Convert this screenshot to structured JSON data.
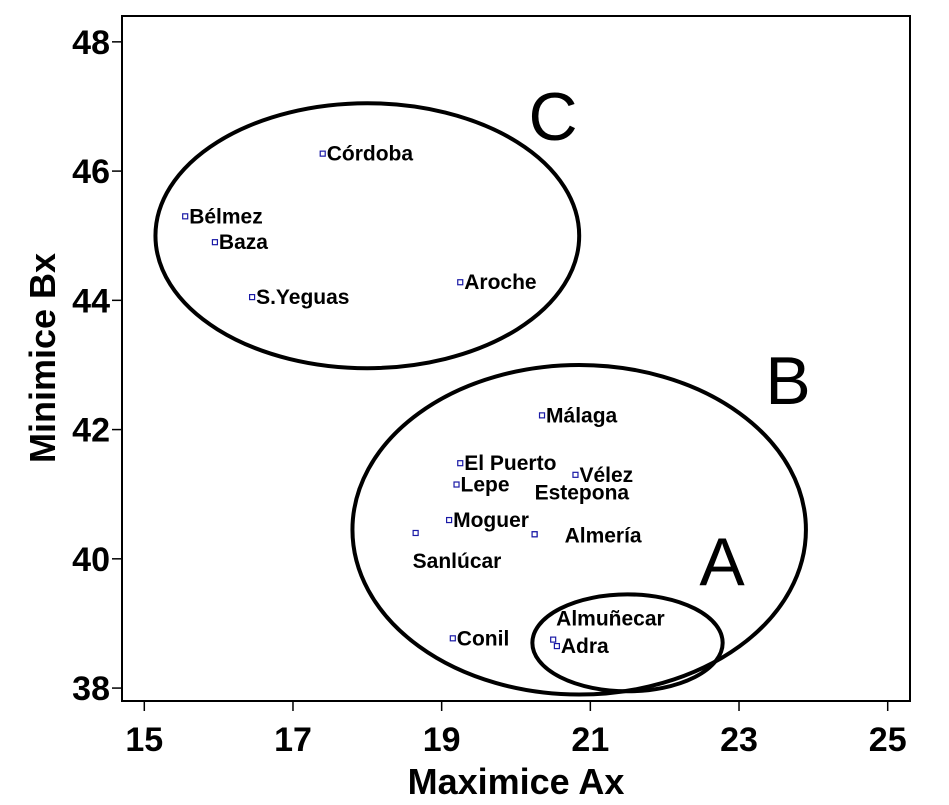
{
  "chart_data": {
    "type": "scatter",
    "xlabel": "Maximice Ax",
    "ylabel": "Minimice Bx",
    "xlim": [
      14.7,
      25.3
    ],
    "ylim": [
      37.8,
      48.4
    ],
    "xticks": [
      15,
      17,
      19,
      21,
      23,
      25
    ],
    "yticks": [
      38,
      40,
      42,
      44,
      46,
      48
    ],
    "grid": false,
    "points": [
      {
        "label": "Córdoba",
        "x": 17.4,
        "y": 46.27
      },
      {
        "label": "Bélmez",
        "x": 15.55,
        "y": 45.3
      },
      {
        "label": "Baza",
        "x": 15.95,
        "y": 44.9
      },
      {
        "label": "S.Yeguas",
        "x": 16.45,
        "y": 44.05
      },
      {
        "label": "Aroche",
        "x": 19.25,
        "y": 44.28
      },
      {
        "label": "Málaga",
        "x": 20.35,
        "y": 42.22
      },
      {
        "label": "El Puerto",
        "x": 19.25,
        "y": 41.48
      },
      {
        "label": "Vélez",
        "x": 20.8,
        "y": 41.3
      },
      {
        "label": "Lepe",
        "x": 19.2,
        "y": 41.15
      },
      {
        "label": "Estepona",
        "x": 20.25,
        "y": 40.38
      },
      {
        "label": "Moguer",
        "x": 19.1,
        "y": 40.6
      },
      {
        "label": "Sanlúcar",
        "x": 18.65,
        "y": 40.4
      },
      {
        "label": "Almería",
        "x": 20.25,
        "y": 40.38
      },
      {
        "label": "Conil",
        "x": 19.15,
        "y": 38.77
      },
      {
        "label": "Almuñecar",
        "x": 20.5,
        "y": 38.75
      },
      {
        "label": "Adra",
        "x": 20.55,
        "y": 38.65
      }
    ],
    "groups": [
      {
        "label": "C",
        "cx": 18.0,
        "cy": 45.0,
        "rx": 2.85,
        "ry": 2.05
      },
      {
        "label": "B",
        "cx": 20.85,
        "cy": 40.45,
        "rx": 3.05,
        "ry": 2.55
      },
      {
        "label": "A",
        "cx": 21.5,
        "cy": 38.7,
        "rx": 1.28,
        "ry": 0.75
      }
    ]
  }
}
